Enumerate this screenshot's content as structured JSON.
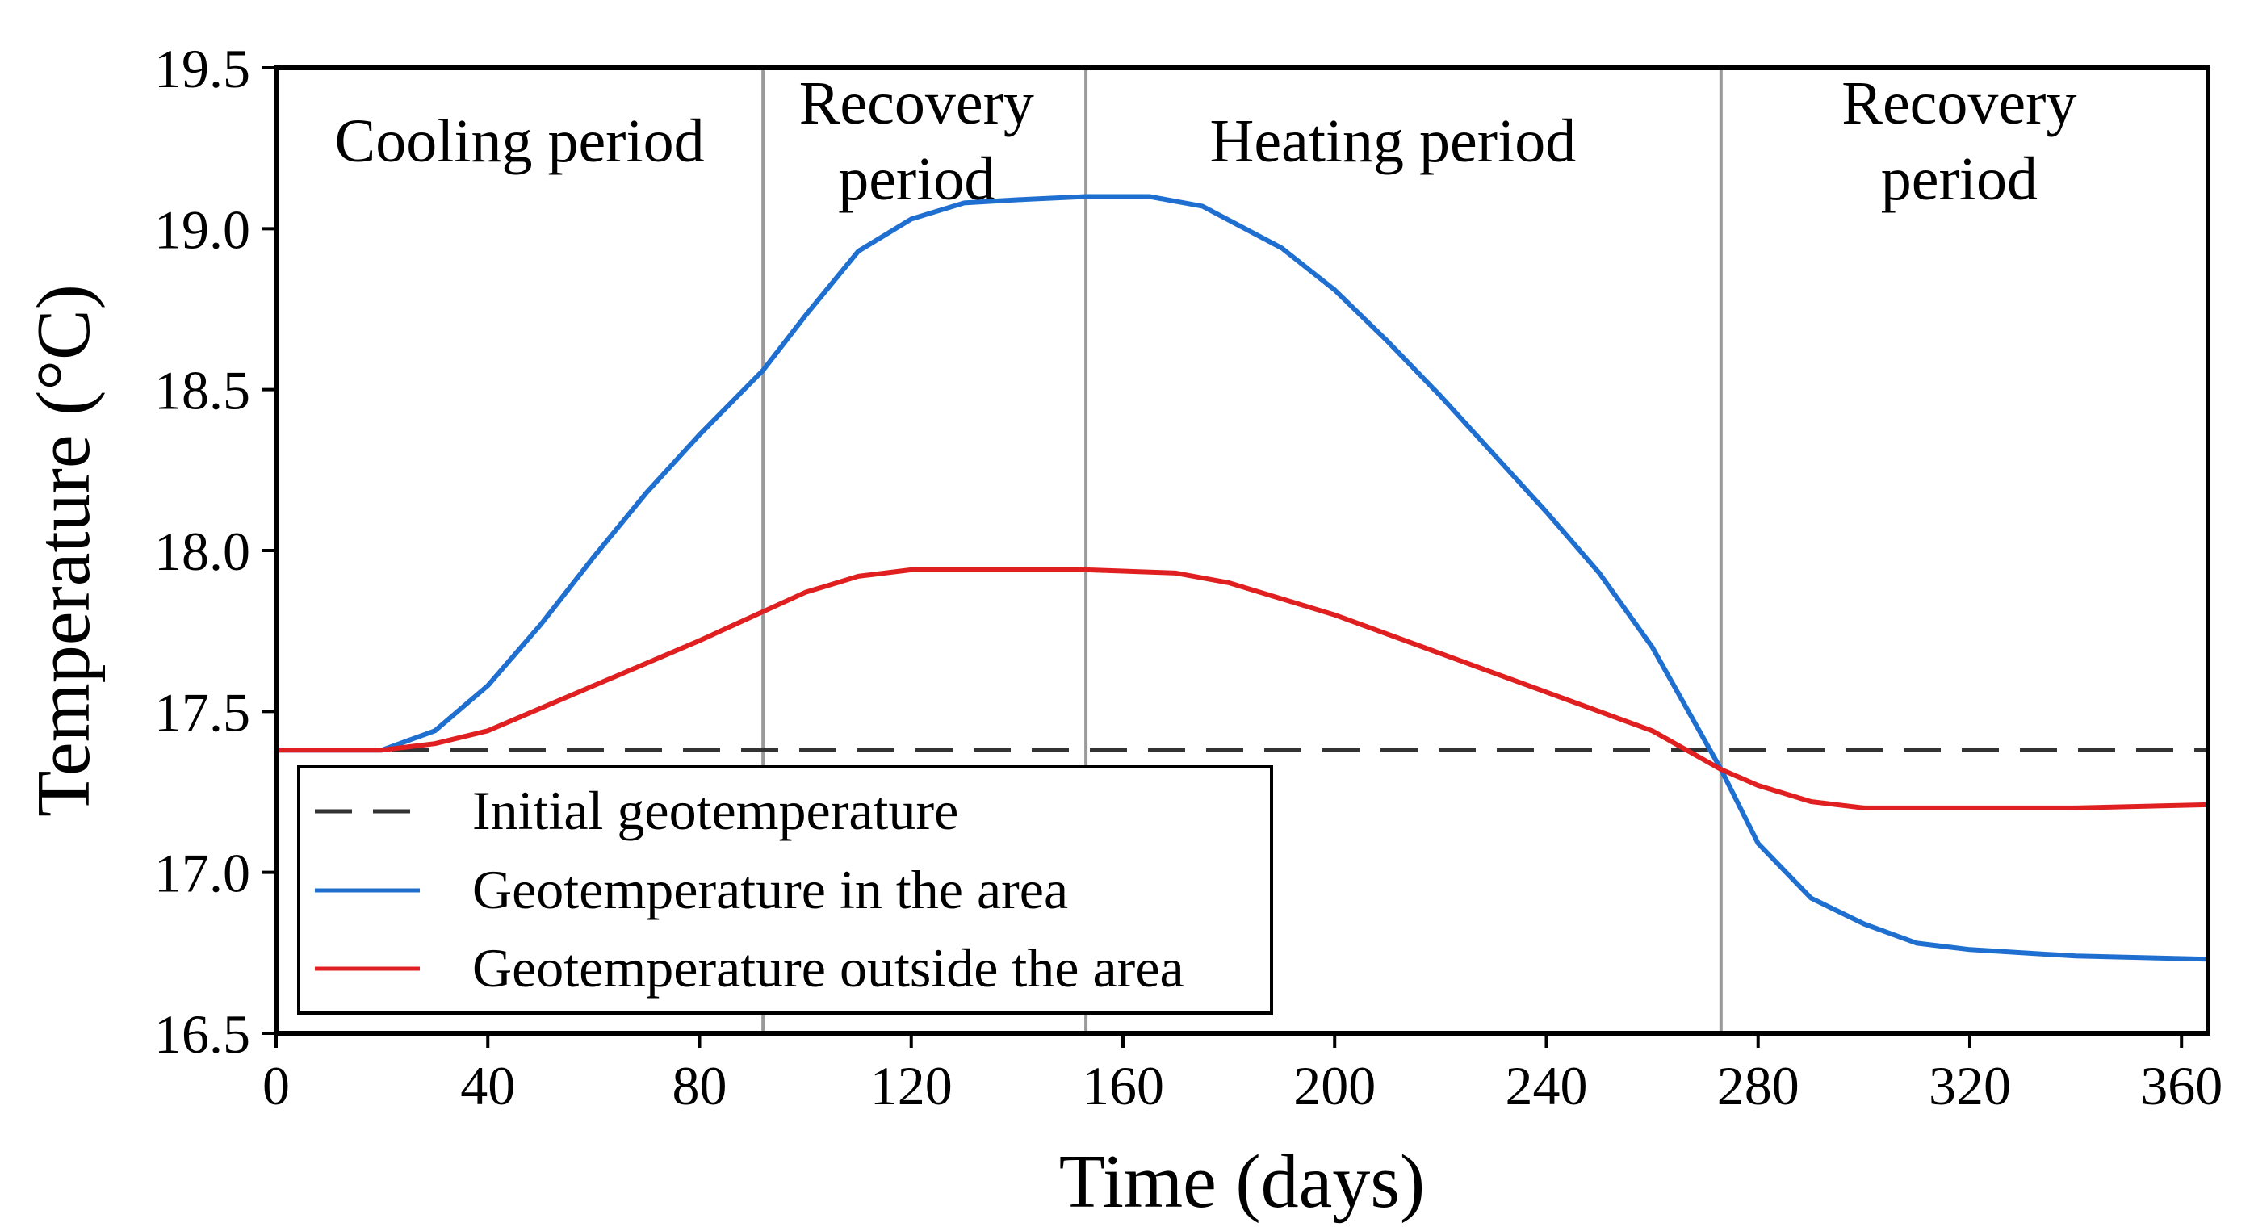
{
  "chart_data": {
    "type": "line",
    "xlabel": "Time (days)",
    "ylabel": "Temperature (°C)",
    "xlim": [
      0,
      365
    ],
    "ylim": [
      16.5,
      19.5
    ],
    "xticks": [
      0,
      40,
      80,
      120,
      160,
      200,
      240,
      280,
      320,
      360
    ],
    "yticks": [
      16.5,
      17.0,
      17.5,
      18.0,
      18.5,
      19.0,
      19.5
    ],
    "xtick_labels": [
      "0",
      "40",
      "80",
      "120",
      "160",
      "200",
      "240",
      "280",
      "320",
      "360"
    ],
    "ytick_labels": [
      "16.5",
      "17.0",
      "17.5",
      "18.0",
      "18.5",
      "19.0",
      "19.5"
    ],
    "grid": false,
    "period_boundaries": [
      92,
      153,
      273
    ],
    "period_labels": [
      {
        "lines": [
          "Cooling period"
        ],
        "x_center": 46
      },
      {
        "lines": [
          "Recovery",
          "period"
        ],
        "x_center": 121
      },
      {
        "lines": [
          "Heating period"
        ],
        "x_center": 211
      },
      {
        "lines": [
          "Recovery",
          "period"
        ],
        "x_center": 318
      }
    ],
    "legend_location": "bottom-left",
    "series": [
      {
        "name": "Initial geotemperature",
        "color": "#333333",
        "style": "dashed",
        "points": [
          [
            0,
            17.38
          ],
          [
            365,
            17.38
          ]
        ]
      },
      {
        "name": "Geotemperature in the area",
        "color": "#1f6fd1",
        "style": "solid",
        "points": [
          [
            0,
            17.38
          ],
          [
            10,
            17.38
          ],
          [
            20,
            17.38
          ],
          [
            30,
            17.44
          ],
          [
            40,
            17.58
          ],
          [
            50,
            17.77
          ],
          [
            60,
            17.98
          ],
          [
            70,
            18.18
          ],
          [
            80,
            18.36
          ],
          [
            92,
            18.56
          ],
          [
            100,
            18.73
          ],
          [
            110,
            18.93
          ],
          [
            120,
            19.03
          ],
          [
            130,
            19.08
          ],
          [
            140,
            19.09
          ],
          [
            153,
            19.1
          ],
          [
            165,
            19.1
          ],
          [
            175,
            19.07
          ],
          [
            190,
            18.94
          ],
          [
            200,
            18.81
          ],
          [
            210,
            18.65
          ],
          [
            220,
            18.48
          ],
          [
            240,
            18.12
          ],
          [
            250,
            17.93
          ],
          [
            260,
            17.7
          ],
          [
            273,
            17.32
          ],
          [
            280,
            17.09
          ],
          [
            290,
            16.92
          ],
          [
            300,
            16.84
          ],
          [
            310,
            16.78
          ],
          [
            320,
            16.76
          ],
          [
            340,
            16.74
          ],
          [
            365,
            16.73
          ]
        ]
      },
      {
        "name": "Geotemperature outside the area",
        "color": "#e02020",
        "style": "solid",
        "points": [
          [
            0,
            17.38
          ],
          [
            10,
            17.38
          ],
          [
            20,
            17.38
          ],
          [
            30,
            17.4
          ],
          [
            40,
            17.44
          ],
          [
            60,
            17.58
          ],
          [
            80,
            17.72
          ],
          [
            92,
            17.81
          ],
          [
            100,
            17.87
          ],
          [
            110,
            17.92
          ],
          [
            120,
            17.94
          ],
          [
            140,
            17.94
          ],
          [
            153,
            17.94
          ],
          [
            170,
            17.93
          ],
          [
            180,
            17.9
          ],
          [
            200,
            17.8
          ],
          [
            220,
            17.68
          ],
          [
            240,
            17.56
          ],
          [
            260,
            17.44
          ],
          [
            273,
            17.32
          ],
          [
            280,
            17.27
          ],
          [
            290,
            17.22
          ],
          [
            300,
            17.2
          ],
          [
            320,
            17.2
          ],
          [
            340,
            17.2
          ],
          [
            365,
            17.21
          ]
        ]
      }
    ]
  }
}
